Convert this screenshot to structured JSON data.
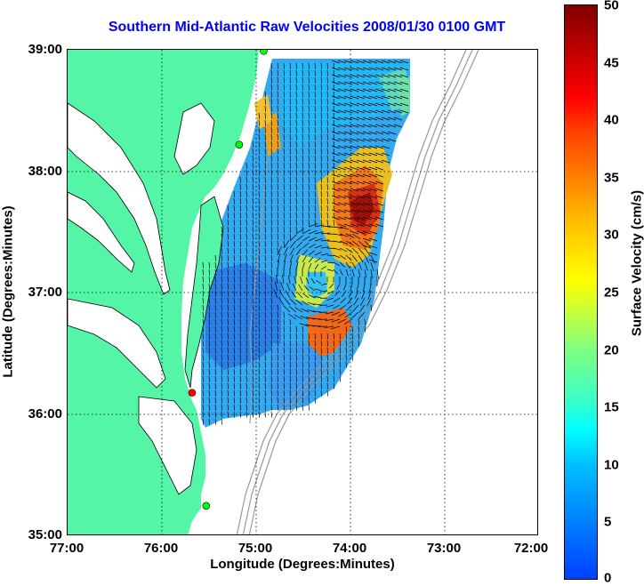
{
  "title": "Southern Mid-Atlantic Raw Velocities 2008/01/30 0100 GMT",
  "xlabel": "Longitude (Degrees:Minutes)",
  "ylabel": "Latitude (Degrees:Minutes)",
  "x_ticks": [
    "77:00",
    "76:00",
    "75:00",
    "74:00",
    "73:00",
    "72:00"
  ],
  "y_ticks": [
    "39:00",
    "38:00",
    "37:00",
    "36:00",
    "35:00"
  ],
  "colorbar": {
    "label": "Surface Velocity (cm/s)",
    "ticks": [
      "50",
      "45",
      "40",
      "35",
      "30",
      "25",
      "20",
      "15",
      "10",
      "5",
      "0"
    ],
    "range": [
      0,
      50
    ]
  },
  "map": {
    "lon_range": [
      -77,
      -72
    ],
    "lat_range": [
      35,
      39
    ],
    "land_color": "#55f5a8",
    "coast_color": "#000000",
    "bathymetry_color": "#999999",
    "grid": "dotted",
    "stations": [
      {
        "color": "#00ff00",
        "lon": -74.92,
        "lat": 38.99
      },
      {
        "color": "#00ff00",
        "lon": -75.18,
        "lat": 38.22
      },
      {
        "color": "#ff0000",
        "lon": -75.68,
        "lat": 36.18
      },
      {
        "color": "#00ff00",
        "lon": -75.53,
        "lat": 35.25
      }
    ]
  }
}
